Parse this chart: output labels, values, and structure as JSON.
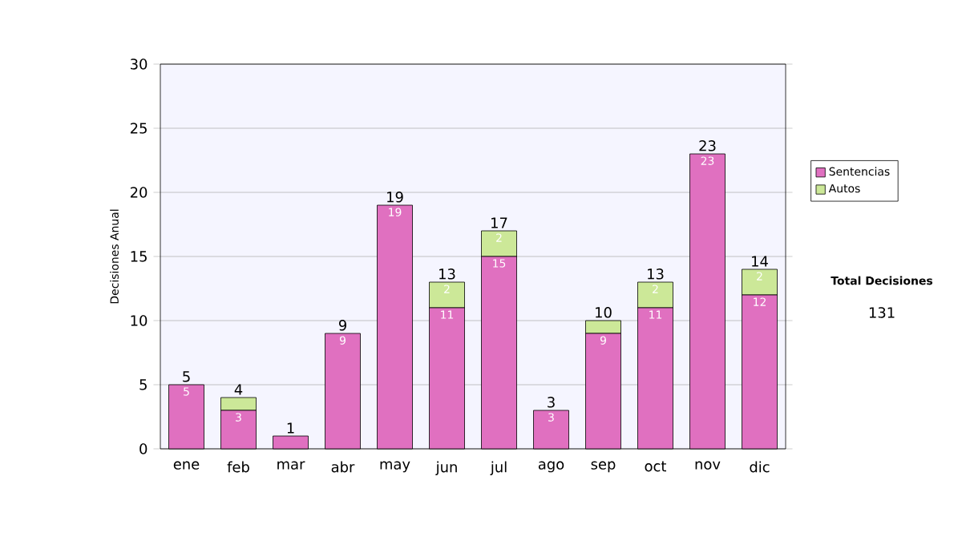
{
  "chart_data": {
    "type": "bar",
    "stacked": true,
    "ylabel": "Decisiones Anual",
    "categories": [
      "ene",
      "feb",
      "mar",
      "abr",
      "may",
      "jun",
      "jul",
      "ago",
      "sep",
      "oct",
      "nov",
      "dic"
    ],
    "series": [
      {
        "name": "Sentencias",
        "color": "#e070c0",
        "values": [
          5,
          3,
          1,
          9,
          19,
          11,
          15,
          3,
          9,
          11,
          23,
          12
        ],
        "value_labels": [
          "5",
          "3",
          null,
          "9",
          "19",
          "11",
          "15",
          "3",
          "9",
          "11",
          "23",
          "12"
        ]
      },
      {
        "name": "Autos",
        "color": "#cce898",
        "values": [
          0,
          1,
          0,
          0,
          0,
          2,
          2,
          0,
          1,
          2,
          0,
          2
        ],
        "value_labels": [
          null,
          null,
          null,
          null,
          null,
          "2",
          "2",
          null,
          null,
          "2",
          null,
          "2"
        ]
      }
    ],
    "totals": [
      "5",
      "4",
      "1",
      "9",
      "19",
      "13",
      "17",
      "3",
      "10",
      "13",
      "23",
      "14"
    ],
    "ylim": [
      0,
      30
    ],
    "yticks": [
      0,
      5,
      10,
      15,
      20,
      25,
      30
    ],
    "grid": "y",
    "legend": "right",
    "annotations": [
      "Total Decisiones",
      "131"
    ]
  }
}
